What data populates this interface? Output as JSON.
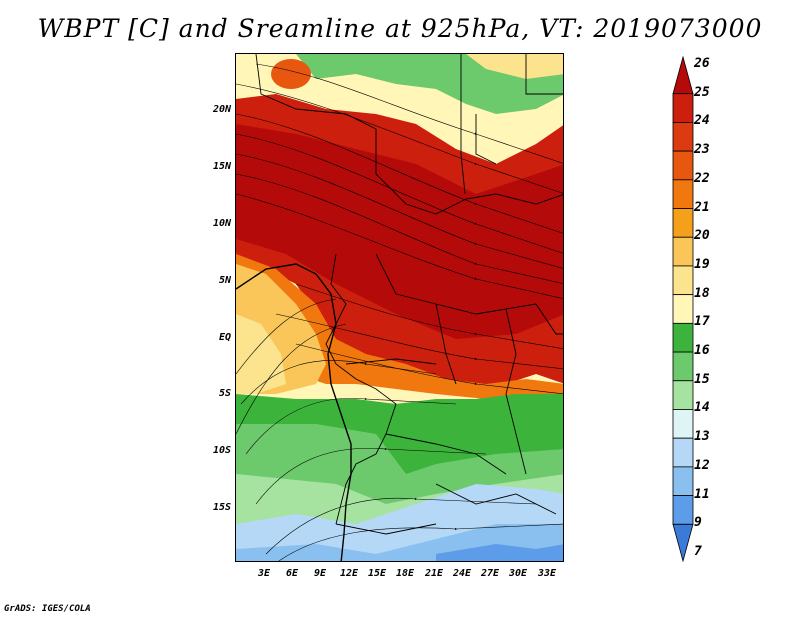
{
  "title": "WBPT [C] and Sreamline at 925hPa, VT: 2019073000",
  "credit": "GrADS: IGES/COLA",
  "map": {
    "lat_labels": [
      "20N",
      "15N",
      "10N",
      "5N",
      "EQ",
      "5S",
      "10S",
      "15S"
    ],
    "lon_labels": [
      "3E",
      "6E",
      "9E",
      "12E",
      "15E",
      "18E",
      "21E",
      "24E",
      "27E",
      "30E",
      "33E"
    ]
  },
  "colorbar": {
    "labels": [
      "26",
      "25",
      "24",
      "23",
      "22",
      "21",
      "20",
      "19",
      "18",
      "17",
      "16",
      "15",
      "14",
      "13",
      "12",
      "11",
      "9",
      "7"
    ],
    "colors": [
      "#b50a0a",
      "#cc1f0e",
      "#dc3a10",
      "#e8570f",
      "#f0780f",
      "#f5a01a",
      "#fac65a",
      "#fce38d",
      "#fff6b8",
      "#3cb43c",
      "#6cc96c",
      "#a6e3a0",
      "#dff5f5",
      "#b4d8f6",
      "#8ac0f0",
      "#5c9ce8",
      "#3a7ad8"
    ]
  }
}
